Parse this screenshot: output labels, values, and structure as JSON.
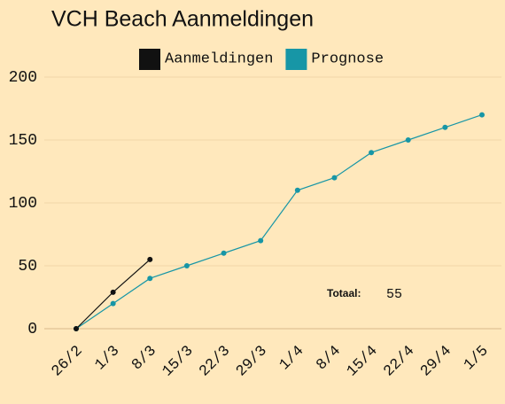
{
  "chart_data": {
    "type": "line",
    "title": "VCH Beach Aanmeldingen",
    "categories": [
      "26/2",
      "1/3",
      "8/3",
      "15/3",
      "22/3",
      "29/3",
      "1/4",
      "8/4",
      "15/4",
      "22/4",
      "29/4",
      "1/5"
    ],
    "series": [
      {
        "name": "Aanmeldingen",
        "color": "#111111",
        "values": [
          0,
          29,
          55,
          null,
          null,
          null,
          null,
          null,
          null,
          null,
          null,
          null
        ]
      },
      {
        "name": "Prognose",
        "color": "#1796a6",
        "values": [
          0,
          20,
          40,
          50,
          60,
          70,
          110,
          120,
          140,
          150,
          160,
          170
        ]
      }
    ],
    "ylim": [
      0,
      200
    ],
    "yticks": [
      0,
      50,
      100,
      150,
      200
    ],
    "grid": true,
    "legend": "top",
    "annotation": {
      "label": "Totaal:",
      "value": 55
    }
  }
}
